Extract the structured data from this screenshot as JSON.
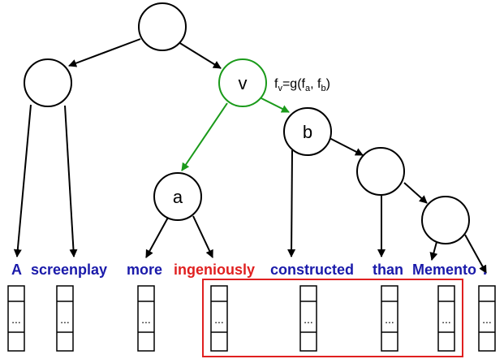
{
  "diagram": {
    "node_labels": {
      "v": "v",
      "a": "a",
      "b": "b"
    },
    "formula": {
      "f_main": "f",
      "sub_v": "v",
      "eq": "=g(f",
      "sub_a": "a",
      "comma": ", f",
      "sub_b": "b",
      "close": ")"
    },
    "words": [
      {
        "text": "A",
        "color": "#1a1aaa"
      },
      {
        "text": "screenplay",
        "color": "#1a1aaa"
      },
      {
        "text": "more",
        "color": "#1a1aaa"
      },
      {
        "text": "ingeniously",
        "color": "#e02020"
      },
      {
        "text": "constructed",
        "color": "#1a1aaa"
      },
      {
        "text": "than",
        "color": "#1a1aaa"
      },
      {
        "text": "Memento",
        "color": "#1a1aaa"
      },
      {
        "text": ".",
        "color": "#1a1aaa"
      }
    ],
    "vector_dots": "...",
    "colors": {
      "highlight": "#e02020",
      "green_edges": "#1a9a1a",
      "word_blue": "#1a1aaa",
      "word_red": "#e02020"
    }
  }
}
